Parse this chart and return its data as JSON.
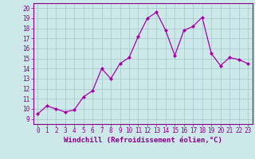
{
  "x": [
    0,
    1,
    2,
    3,
    4,
    5,
    6,
    7,
    8,
    9,
    10,
    11,
    12,
    13,
    14,
    15,
    16,
    17,
    18,
    19,
    20,
    21,
    22,
    23
  ],
  "y": [
    9.5,
    10.3,
    10.0,
    9.7,
    9.9,
    11.2,
    11.8,
    14.0,
    13.0,
    14.5,
    15.1,
    17.2,
    19.0,
    19.6,
    17.8,
    15.3,
    17.8,
    18.2,
    19.1,
    15.5,
    14.3,
    15.1,
    14.9,
    14.5
  ],
  "line_color": "#aa00aa",
  "marker": "D",
  "marker_size": 2.0,
  "bg_color": "#cce8e8",
  "grid_color": "#aacccc",
  "xlabel": "Windchill (Refroidissement éolien,°C)",
  "ylabel": "",
  "xlim": [
    -0.5,
    23.5
  ],
  "ylim": [
    8.5,
    20.5
  ],
  "xticks": [
    0,
    1,
    2,
    3,
    4,
    5,
    6,
    7,
    8,
    9,
    10,
    11,
    12,
    13,
    14,
    15,
    16,
    17,
    18,
    19,
    20,
    21,
    22,
    23
  ],
  "yticks": [
    9,
    10,
    11,
    12,
    13,
    14,
    15,
    16,
    17,
    18,
    19,
    20
  ],
  "xlabel_fontsize": 6.5,
  "tick_fontsize": 5.5,
  "text_color": "#880088"
}
